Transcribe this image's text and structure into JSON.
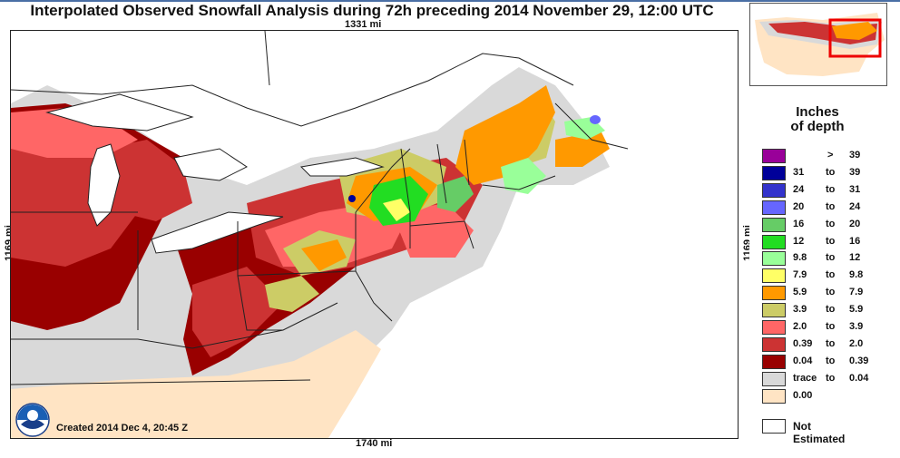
{
  "title": "Interpolated Observed Snowfall Analysis during 72h preceding 2014 November 29, 12:00 UTC",
  "distances": {
    "top": "1331 mi",
    "bottom": "1740 mi",
    "left": "1169 mi",
    "right": "1169 mi"
  },
  "created_text": "Created 2014 Dec 4, 20:45 Z",
  "logo_text": "NOAA",
  "legend": {
    "title_line1": "Inches",
    "title_line2": "of depth",
    "items": [
      {
        "color": "#990099",
        "low": "",
        "sep": ">",
        "high": "39"
      },
      {
        "color": "#000099",
        "low": "31",
        "sep": "to",
        "high": "39"
      },
      {
        "color": "#3333cc",
        "low": "24",
        "sep": "to",
        "high": "31"
      },
      {
        "color": "#6666ff",
        "low": "20",
        "sep": "to",
        "high": "24"
      },
      {
        "color": "#66cc66",
        "low": "16",
        "sep": "to",
        "high": "20"
      },
      {
        "color": "#22dd22",
        "low": "12",
        "sep": "to",
        "high": "16"
      },
      {
        "color": "#99ff99",
        "low": "9.8",
        "sep": "to",
        "high": "12"
      },
      {
        "color": "#ffff66",
        "low": "7.9",
        "sep": "to",
        "high": "9.8"
      },
      {
        "color": "#ff9900",
        "low": "5.9",
        "sep": "to",
        "high": "7.9"
      },
      {
        "color": "#cccc66",
        "low": "3.9",
        "sep": "to",
        "high": "5.9"
      },
      {
        "color": "#ff6666",
        "low": "2.0",
        "sep": "to",
        "high": "3.9"
      },
      {
        "color": "#cc3333",
        "low": "0.39",
        "sep": "to",
        "high": "2.0"
      },
      {
        "color": "#990000",
        "low": "0.04",
        "sep": "to",
        "high": "0.39"
      },
      {
        "color": "#d9d9d9",
        "low": "trace",
        "sep": "to",
        "high": "0.04"
      },
      {
        "color": "#ffe4c4",
        "low": "0.00",
        "sep": "",
        "high": ""
      }
    ],
    "not_estimated": "Not Estimated"
  },
  "colors": {
    "snow_none": "#ffe4c4",
    "trace": "#d9d9d9",
    "light": "#990000",
    "low": "#cc3333",
    "moderate": "#ff6666",
    "yellow_green": "#cccc66",
    "orange": "#ff9900",
    "inset_box": "#ee0000"
  }
}
